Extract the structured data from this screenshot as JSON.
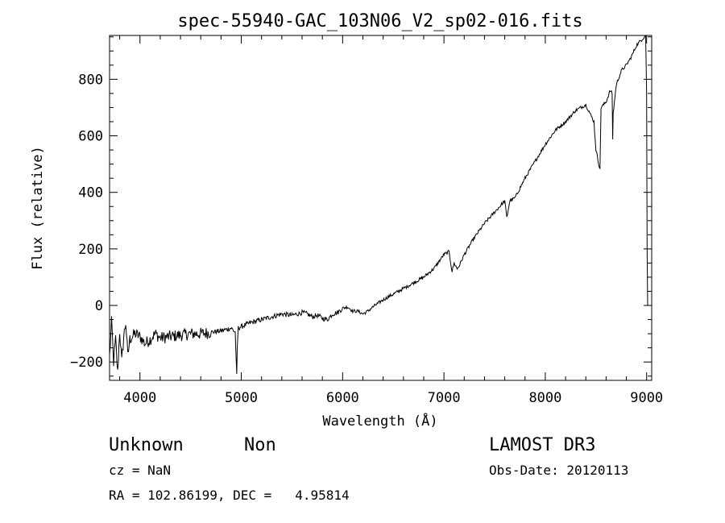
{
  "chart_data": {
    "type": "line",
    "title": "spec-55940-GAC_103N06_V2_sp02-016.fits",
    "xlabel": "Wavelength (Å)",
    "ylabel": "Flux (relative)",
    "xlim": [
      3700,
      9050
    ],
    "ylim": [
      -265,
      955
    ],
    "x_ticks": [
      4000,
      5000,
      6000,
      7000,
      8000,
      9000
    ],
    "x_tick_labels": [
      "4000",
      "5000",
      "6000",
      "7000",
      "8000",
      "9000"
    ],
    "y_ticks": [
      -200,
      0,
      200,
      400,
      600,
      800
    ],
    "y_tick_labels": [
      "−200",
      "0",
      "200",
      "400",
      "600",
      "800"
    ],
    "series": [
      {
        "name": "flux",
        "x": [
          3700,
          3720,
          3740,
          3760,
          3780,
          3800,
          3820,
          3840,
          3860,
          3880,
          3900,
          3950,
          4000,
          4050,
          4100,
          4150,
          4200,
          4300,
          4400,
          4500,
          4600,
          4700,
          4800,
          4900,
          4940,
          4955,
          4960,
          4970,
          5000,
          5100,
          5200,
          5300,
          5400,
          5500,
          5600,
          5650,
          5700,
          5750,
          5800,
          5850,
          5900,
          5950,
          6000,
          6050,
          6100,
          6150,
          6200,
          6250,
          6300,
          6400,
          6500,
          6600,
          6700,
          6800,
          6900,
          7000,
          7050,
          7080,
          7100,
          7130,
          7150,
          7200,
          7300,
          7400,
          7500,
          7550,
          7600,
          7620,
          7650,
          7700,
          7800,
          7900,
          8000,
          8100,
          8200,
          8300,
          8400,
          8480,
          8500,
          8540,
          8545,
          8550,
          8600,
          8640,
          8660,
          8665,
          8670,
          8700,
          8750,
          8800,
          8850,
          8900,
          8950,
          8990,
          9000,
          9005,
          9010
        ],
        "y": [
          -180,
          -60,
          -200,
          -120,
          -240,
          -90,
          -200,
          -110,
          -60,
          -180,
          -120,
          -100,
          -110,
          -135,
          -120,
          -100,
          -115,
          -110,
          -105,
          -100,
          -100,
          -95,
          -90,
          -80,
          -95,
          -250,
          -150,
          -80,
          -75,
          -60,
          -50,
          -40,
          -30,
          -35,
          -25,
          -30,
          -40,
          -35,
          -45,
          -50,
          -30,
          -25,
          -10,
          -5,
          -20,
          -20,
          -30,
          -20,
          -5,
          20,
          40,
          60,
          80,
          100,
          130,
          180,
          190,
          120,
          150,
          130,
          140,
          180,
          240,
          290,
          330,
          350,
          370,
          310,
          370,
          380,
          450,
          510,
          570,
          620,
          650,
          690,
          710,
          650,
          550,
          480,
          600,
          700,
          720,
          760,
          750,
          590,
          680,
          780,
          830,
          850,
          880,
          920,
          940,
          955,
          750,
          200,
          0
        ]
      }
    ],
    "texts": {
      "object_class": "Unknown",
      "object_subclass": "Non",
      "survey": "LAMOST DR3",
      "cz": "cz = NaN",
      "obs_date": "Obs-Date: 20120113",
      "coords": "RA = 102.86199, DEC =   4.95814"
    }
  }
}
